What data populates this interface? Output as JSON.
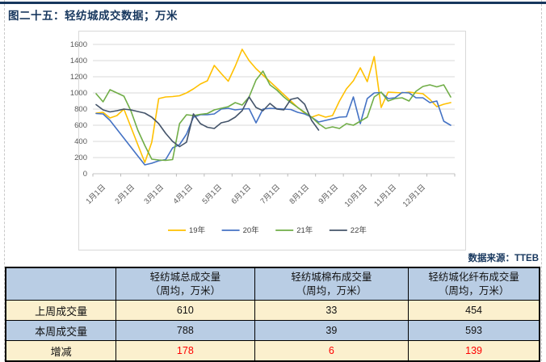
{
  "page": {
    "title": "图二十五：轻纺城成交数据；万米",
    "source_label": "数据来源：TTEB"
  },
  "colors": {
    "accent_navy": "#17375E",
    "table_header_blue": "#B9CDE4",
    "table_cream": "#FBF0CE",
    "delta_red": "#FF0000",
    "gridline": "#D9D9D9",
    "axis_text": "#595959"
  },
  "chart_data": {
    "type": "line",
    "title": "",
    "xlabel": "",
    "ylabel": "",
    "x_tick_labels": [
      "1月1日",
      "2月1日",
      "3月1日",
      "4月1日",
      "5月1日",
      "6月1日",
      "7月1日",
      "8月1日",
      "9月1日",
      "10月1日",
      "11月1日",
      "12月1日"
    ],
    "x_unit": "weekly points across one year",
    "ylim": [
      0,
      1600
    ],
    "y_tick_step": 200,
    "grid": true,
    "legend_position": "bottom",
    "series": [
      {
        "name": "19年",
        "color": "#FFC000",
        "values": [
          750,
          760,
          690,
          720,
          800,
          580,
          360,
          140,
          390,
          930,
          950,
          955,
          965,
          1000,
          1050,
          1110,
          1150,
          1340,
          1240,
          1145,
          1330,
          1540,
          1400,
          1300,
          1220,
          1140,
          1060,
          980,
          900,
          820,
          750,
          700,
          730,
          700,
          720,
          900,
          1050,
          1150,
          1310,
          1140,
          1450,
          820,
          1010,
          1005,
          1000,
          1010,
          1000,
          990,
          920,
          830,
          860,
          880
        ]
      },
      {
        "name": "20年",
        "color": "#4472C4",
        "values": [
          745,
          740,
          660,
          550,
          440,
          330,
          220,
          110,
          130,
          160,
          175,
          320,
          360,
          490,
          700,
          730,
          730,
          740,
          800,
          810,
          790,
          800,
          805,
          630,
          800,
          810,
          805,
          800,
          795,
          760,
          740,
          700,
          640,
          660,
          680,
          700,
          705,
          950,
          620,
          930,
          1000,
          1005,
          930,
          940,
          1005,
          1000,
          940,
          940,
          880,
          900,
          650,
          600
        ]
      },
      {
        "name": "21年",
        "color": "#70AD47",
        "values": [
          990,
          890,
          1040,
          1000,
          960,
          780,
          540,
          350,
          180,
          170,
          165,
          175,
          620,
          730,
          720,
          735,
          745,
          790,
          810,
          830,
          880,
          850,
          950,
          1160,
          1270,
          1100,
          1035,
          950,
          880,
          820,
          760,
          700,
          620,
          560,
          580,
          560,
          620,
          600,
          650,
          700,
          950,
          1010,
          900,
          930,
          940,
          900,
          1020,
          1080,
          1100,
          1075,
          1100,
          950
        ]
      },
      {
        "name": "22年",
        "color": "#44546A",
        "values": [
          855,
          790,
          765,
          780,
          800,
          790,
          770,
          750,
          700,
          620,
          500,
          400,
          335,
          390,
          740,
          620,
          575,
          560,
          630,
          650,
          700,
          780,
          950,
          820,
          780,
          870,
          800,
          790,
          920,
          940,
          860,
          660,
          540
        ]
      }
    ]
  },
  "table": {
    "col_headers": [
      {
        "title": "",
        "subtitle": ""
      },
      {
        "title": "轻纺城总成交量",
        "subtitle": "（周均，万米）"
      },
      {
        "title": "轻纺城棉布成交量",
        "subtitle": "（周均，万米）"
      },
      {
        "title": "轻纺城化纤布成交量",
        "subtitle": "（周均，万米）"
      }
    ],
    "rows": [
      {
        "label": "上周成交量",
        "values": [
          "610",
          "33",
          "454"
        ],
        "delta": false
      },
      {
        "label": "本周成交量",
        "values": [
          "788",
          "39",
          "593"
        ],
        "delta": false
      },
      {
        "label": "增减",
        "values": [
          "178",
          "6",
          "139"
        ],
        "delta": true
      }
    ]
  }
}
